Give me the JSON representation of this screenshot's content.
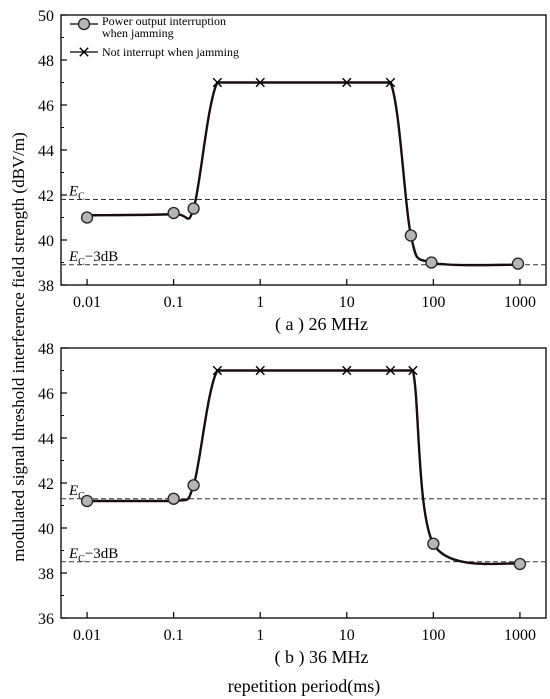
{
  "y_axis_label": "modulated signal threshold interference field  strength  (dBV/m)",
  "x_axis_label": "repetition period(ms)",
  "legend": {
    "interrupt_line1": "Power output interruption",
    "interrupt_line2": "when jamming",
    "no_interrupt": "Not interrupt when jamming"
  },
  "colors": {
    "curve": "#1a0d0d",
    "marker_fill": "#b5b5b5",
    "axis": "#000000",
    "dashed": "#333333"
  },
  "chart_data": [
    {
      "type": "line",
      "caption": "( a ) 26 MHz",
      "x_scale": "log",
      "xlim": [
        0.005,
        2000
      ],
      "ylim": [
        38,
        50
      ],
      "x_ticks": [
        0.01,
        0.1,
        1,
        10,
        100,
        1000
      ],
      "x_tick_labels": [
        "0.01",
        "0.1",
        "1",
        "10",
        "100",
        "1000"
      ],
      "y_ticks": [
        38,
        40,
        42,
        44,
        46,
        48,
        50
      ],
      "y_tick_labels": [
        "38",
        "40",
        "42",
        "44",
        "46",
        "48",
        "50"
      ],
      "ref_lines": [
        {
          "label_main": "E",
          "label_sub": "C",
          "label_suffix": "",
          "y": 41.8
        },
        {
          "label_main": "E",
          "label_sub": "C",
          "label_suffix": "−3dB",
          "y": 38.9
        }
      ],
      "series": [
        {
          "name": "Power output interruption when jamming",
          "marker": "circle",
          "x": [
            0.01,
            0.1,
            0.17,
            55,
            95,
            950
          ],
          "y": [
            41.0,
            41.2,
            41.4,
            40.2,
            39.0,
            38.95
          ]
        },
        {
          "name": "Not interrupt when jamming",
          "marker": "x",
          "x": [
            0.32,
            1,
            10,
            32
          ],
          "y": [
            47.0,
            47.0,
            47.0,
            47.0
          ]
        }
      ],
      "curve": {
        "x": [
          0.01,
          0.1,
          0.17,
          0.32,
          1,
          10,
          32,
          55,
          95,
          950
        ],
        "y": [
          41.1,
          41.15,
          41.4,
          47.0,
          47.0,
          47.0,
          47.0,
          40.2,
          39.0,
          38.9
        ]
      }
    },
    {
      "type": "line",
      "caption": "( b ) 36 MHz",
      "x_scale": "log",
      "xlim": [
        0.005,
        2000
      ],
      "ylim": [
        36,
        48
      ],
      "x_ticks": [
        0.01,
        0.1,
        1,
        10,
        100,
        1000
      ],
      "x_tick_labels": [
        "0.01",
        "0.1",
        "1",
        "10",
        "100",
        "1000"
      ],
      "y_ticks": [
        36,
        38,
        40,
        42,
        44,
        46,
        48
      ],
      "y_tick_labels": [
        "36",
        "38",
        "40",
        "42",
        "44",
        "46",
        "48"
      ],
      "ref_lines": [
        {
          "label_main": "E",
          "label_sub": "C",
          "label_suffix": "",
          "y": 41.3
        },
        {
          "label_main": "E",
          "label_sub": "C",
          "label_suffix": "−3dB",
          "y": 38.5
        }
      ],
      "series": [
        {
          "name": "Power output interruption when jamming",
          "marker": "circle",
          "x": [
            0.01,
            0.1,
            0.17,
            100,
            1000
          ],
          "y": [
            41.2,
            41.3,
            41.9,
            39.3,
            38.4
          ]
        },
        {
          "name": "Not interrupt when jamming",
          "marker": "x",
          "x": [
            0.32,
            1,
            10,
            32,
            58
          ],
          "y": [
            47.0,
            47.0,
            47.0,
            47.0,
            47.0
          ]
        }
      ],
      "curve": {
        "x": [
          0.01,
          0.1,
          0.17,
          0.32,
          1,
          10,
          32,
          58,
          100,
          1000
        ],
        "y": [
          41.2,
          41.2,
          41.9,
          47.0,
          47.0,
          47.0,
          47.0,
          47.0,
          39.3,
          38.4
        ]
      }
    }
  ]
}
